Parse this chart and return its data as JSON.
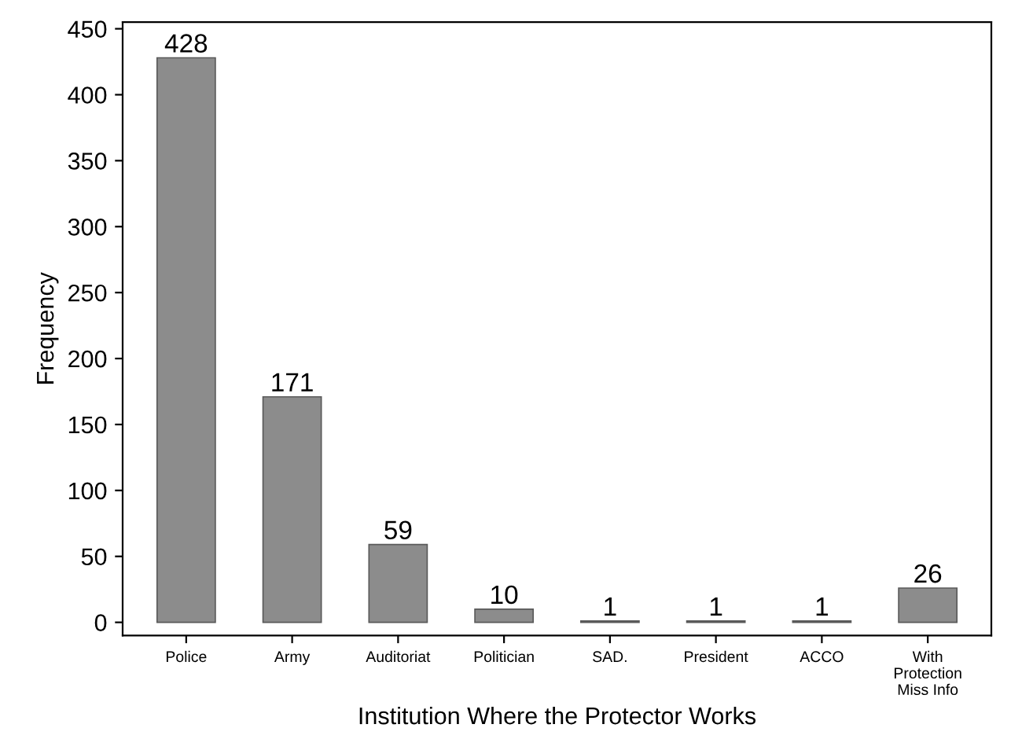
{
  "chart_data": {
    "type": "bar",
    "xlabel": "Institution Where the Protector Works",
    "ylabel": "Frequency",
    "categories": [
      "Police",
      "Army",
      "Auditoriat",
      "Politician",
      "SAD.",
      "President",
      "ACCO",
      "With\nProtection\nMiss Info"
    ],
    "values": [
      428,
      171,
      59,
      10,
      1,
      1,
      1,
      26
    ],
    "color": "#8c8c8c",
    "ylim": [
      -10,
      455
    ],
    "yticks": [
      0,
      50,
      100,
      150,
      200,
      250,
      300,
      350,
      400,
      450
    ],
    "data_labels": true,
    "grid": false,
    "legend": false
  }
}
